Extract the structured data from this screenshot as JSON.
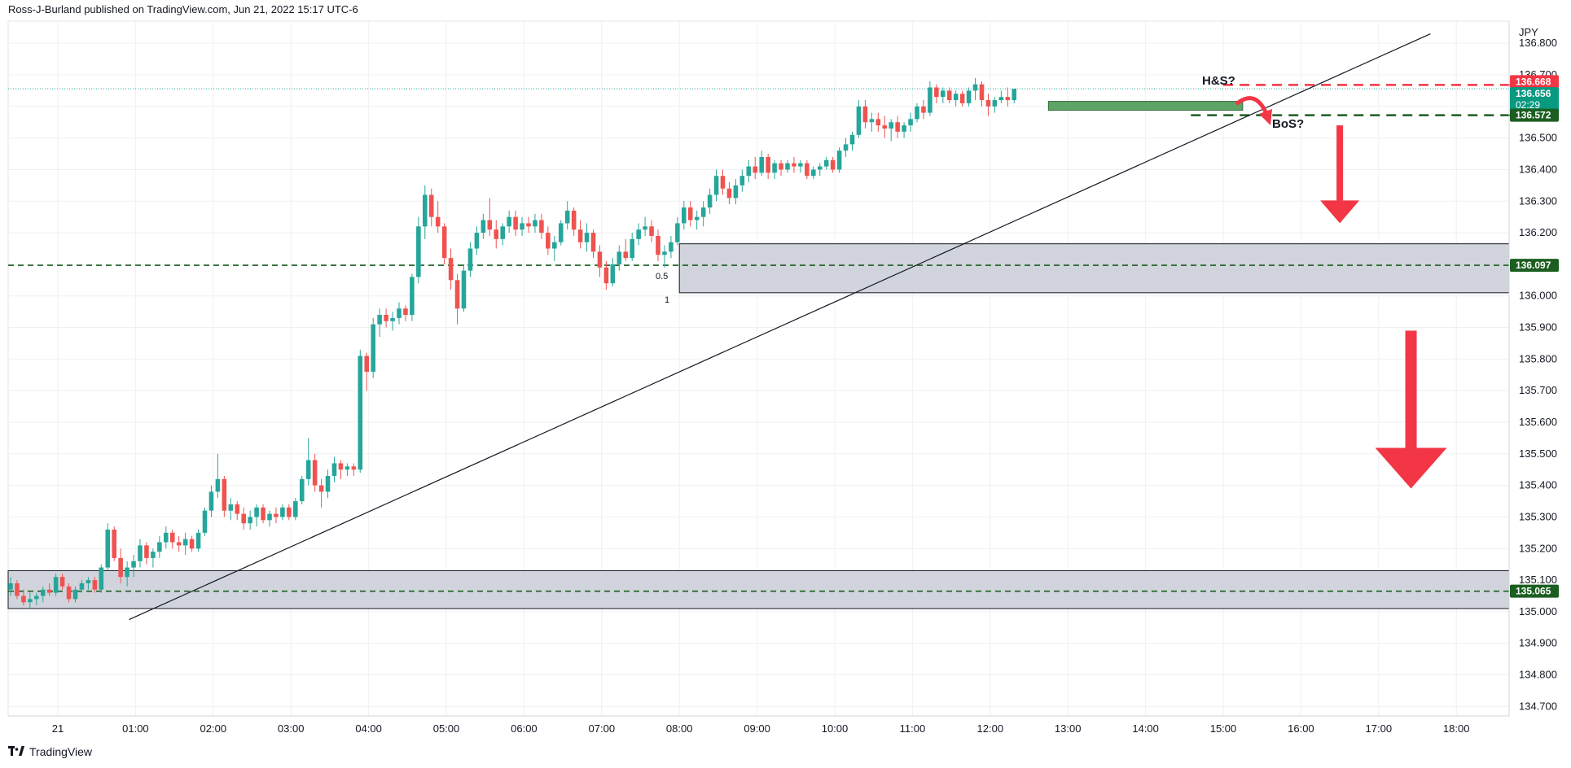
{
  "header": {
    "published": "Ross-J-Burland published on TradingView.com, Jun 21, 2022 15:17 UTC-6"
  },
  "footer": {
    "brand": "TradingView",
    "logo_icon": "tradingview-logo-icon"
  },
  "chart_data": {
    "type": "candlestick",
    "currency": "JPY",
    "x_ticks": [
      "21",
      "01:00",
      "02:00",
      "03:00",
      "04:00",
      "05:00",
      "06:00",
      "07:00",
      "08:00",
      "09:00",
      "10:00",
      "11:00",
      "12:00",
      "13:00",
      "14:00",
      "15:00",
      "16:00",
      "17:00",
      "18:00"
    ],
    "y_ticks": [
      "136.800",
      "136.700",
      "136.600",
      "136.500",
      "136.400",
      "136.300",
      "136.200",
      "136.100",
      "136.000",
      "135.900",
      "135.800",
      "135.700",
      "135.600",
      "135.500",
      "135.400",
      "135.300",
      "135.200",
      "135.100",
      "135.000",
      "134.900",
      "134.800",
      "134.700"
    ],
    "ylim": [
      134.67,
      136.87
    ],
    "bar_minutes": 5,
    "colors": {
      "up": "#26a69a",
      "down": "#ef5350",
      "arrow": "#f23645",
      "level_green": "#1b5e20",
      "zone_fill": "#d1d4dc",
      "zone_green": "#4c9a56"
    },
    "price_tags": [
      {
        "label": "136.668",
        "value": 136.668,
        "color": "#f23645"
      },
      {
        "label": "136.656",
        "value": 136.656,
        "color": "#089981",
        "countdown": "02:29"
      },
      {
        "label": "136.572",
        "value": 136.572,
        "color": "#1b5e20"
      },
      {
        "label": "136.097",
        "value": 136.097,
        "color": "#1b5e20"
      },
      {
        "label": "135.065",
        "value": 135.065,
        "color": "#1b5e20"
      }
    ],
    "annotations": [
      {
        "text": "H&S?"
      },
      {
        "text": "BoS?"
      },
      {
        "text": "0.5"
      },
      {
        "text": "1"
      }
    ],
    "zones": [
      {
        "from": "00:00",
        "to": "end",
        "low": 135.01,
        "high": 135.13
      },
      {
        "from": "08:00",
        "to": "end",
        "low": 136.01,
        "high": 136.165
      },
      {
        "from": "12:45",
        "to": "15:15",
        "low": 136.588,
        "high": 136.616,
        "style": "green"
      }
    ],
    "levels": [
      {
        "value": 136.668,
        "from": "15:00",
        "to": "18:45",
        "style": "red-dash"
      },
      {
        "value": 136.572,
        "from": "14:35",
        "to": "18:45",
        "style": "green-dash"
      },
      {
        "value": 136.097,
        "from": "00:00",
        "to": "end",
        "style": "green-dash"
      },
      {
        "value": 135.065,
        "from": "00:00",
        "to": "end",
        "style": "green-dash"
      }
    ],
    "trendline": [
      {
        "t": "00:55",
        "price": 134.975
      },
      {
        "t": "17:40",
        "price": 136.83
      }
    ],
    "arrows": [
      {
        "t": "16:30",
        "from": 136.54,
        "to": 136.23,
        "size": "small"
      },
      {
        "t": "17:25",
        "from": 135.89,
        "to": 135.39,
        "size": "large"
      }
    ],
    "candles": [
      {
        "o": 135.07,
        "h": 135.11,
        "l": 135.05,
        "c": 135.09
      },
      {
        "o": 135.09,
        "h": 135.1,
        "l": 135.04,
        "c": 135.05
      },
      {
        "o": 135.05,
        "h": 135.07,
        "l": 135.02,
        "c": 135.03
      },
      {
        "o": 135.03,
        "h": 135.06,
        "l": 135.01,
        "c": 135.04
      },
      {
        "o": 135.04,
        "h": 135.06,
        "l": 135.02,
        "c": 135.05
      },
      {
        "o": 135.05,
        "h": 135.08,
        "l": 135.03,
        "c": 135.07
      },
      {
        "o": 135.07,
        "h": 135.09,
        "l": 135.05,
        "c": 135.06
      },
      {
        "o": 135.06,
        "h": 135.12,
        "l": 135.05,
        "c": 135.11
      },
      {
        "o": 135.11,
        "h": 135.12,
        "l": 135.07,
        "c": 135.08
      },
      {
        "o": 135.08,
        "h": 135.09,
        "l": 135.03,
        "c": 135.04
      },
      {
        "o": 135.04,
        "h": 135.08,
        "l": 135.03,
        "c": 135.07
      },
      {
        "o": 135.07,
        "h": 135.1,
        "l": 135.06,
        "c": 135.09
      },
      {
        "o": 135.09,
        "h": 135.11,
        "l": 135.07,
        "c": 135.1
      },
      {
        "o": 135.1,
        "h": 135.11,
        "l": 135.06,
        "c": 135.07
      },
      {
        "o": 135.07,
        "h": 135.15,
        "l": 135.06,
        "c": 135.14
      },
      {
        "o": 135.14,
        "h": 135.28,
        "l": 135.13,
        "c": 135.26
      },
      {
        "o": 135.26,
        "h": 135.27,
        "l": 135.16,
        "c": 135.17
      },
      {
        "o": 135.17,
        "h": 135.2,
        "l": 135.09,
        "c": 135.11
      },
      {
        "o": 135.11,
        "h": 135.16,
        "l": 135.08,
        "c": 135.14
      },
      {
        "o": 135.14,
        "h": 135.18,
        "l": 135.11,
        "c": 135.16
      },
      {
        "o": 135.16,
        "h": 135.23,
        "l": 135.14,
        "c": 135.21
      },
      {
        "o": 135.21,
        "h": 135.22,
        "l": 135.15,
        "c": 135.17
      },
      {
        "o": 135.17,
        "h": 135.2,
        "l": 135.14,
        "c": 135.19
      },
      {
        "o": 135.19,
        "h": 135.24,
        "l": 135.17,
        "c": 135.22
      },
      {
        "o": 135.22,
        "h": 135.27,
        "l": 135.2,
        "c": 135.25
      },
      {
        "o": 135.25,
        "h": 135.26,
        "l": 135.2,
        "c": 135.22
      },
      {
        "o": 135.22,
        "h": 135.24,
        "l": 135.19,
        "c": 135.21
      },
      {
        "o": 135.21,
        "h": 135.25,
        "l": 135.18,
        "c": 135.23
      },
      {
        "o": 135.23,
        "h": 135.24,
        "l": 135.19,
        "c": 135.2
      },
      {
        "o": 135.2,
        "h": 135.26,
        "l": 135.19,
        "c": 135.25
      },
      {
        "o": 135.25,
        "h": 135.33,
        "l": 135.24,
        "c": 135.32
      },
      {
        "o": 135.32,
        "h": 135.4,
        "l": 135.3,
        "c": 135.38
      },
      {
        "o": 135.38,
        "h": 135.5,
        "l": 135.36,
        "c": 135.42
      },
      {
        "o": 135.42,
        "h": 135.43,
        "l": 135.3,
        "c": 135.32
      },
      {
        "o": 135.32,
        "h": 135.36,
        "l": 135.29,
        "c": 135.34
      },
      {
        "o": 135.34,
        "h": 135.35,
        "l": 135.29,
        "c": 135.31
      },
      {
        "o": 135.31,
        "h": 135.33,
        "l": 135.26,
        "c": 135.28
      },
      {
        "o": 135.28,
        "h": 135.32,
        "l": 135.26,
        "c": 135.3
      },
      {
        "o": 135.3,
        "h": 135.34,
        "l": 135.27,
        "c": 135.33
      },
      {
        "o": 135.33,
        "h": 135.34,
        "l": 135.28,
        "c": 135.29
      },
      {
        "o": 135.29,
        "h": 135.32,
        "l": 135.27,
        "c": 135.31
      },
      {
        "o": 135.31,
        "h": 135.33,
        "l": 135.28,
        "c": 135.3
      },
      {
        "o": 135.3,
        "h": 135.34,
        "l": 135.29,
        "c": 135.33
      },
      {
        "o": 135.33,
        "h": 135.34,
        "l": 135.29,
        "c": 135.3
      },
      {
        "o": 135.3,
        "h": 135.36,
        "l": 135.29,
        "c": 135.35
      },
      {
        "o": 135.35,
        "h": 135.43,
        "l": 135.34,
        "c": 135.42
      },
      {
        "o": 135.42,
        "h": 135.55,
        "l": 135.4,
        "c": 135.48
      },
      {
        "o": 135.48,
        "h": 135.5,
        "l": 135.38,
        "c": 135.4
      },
      {
        "o": 135.4,
        "h": 135.42,
        "l": 135.33,
        "c": 135.38
      },
      {
        "o": 135.38,
        "h": 135.45,
        "l": 135.36,
        "c": 135.43
      },
      {
        "o": 135.43,
        "h": 135.49,
        "l": 135.41,
        "c": 135.47
      },
      {
        "o": 135.47,
        "h": 135.48,
        "l": 135.42,
        "c": 135.45
      },
      {
        "o": 135.45,
        "h": 135.47,
        "l": 135.43,
        "c": 135.46
      },
      {
        "o": 135.46,
        "h": 135.47,
        "l": 135.43,
        "c": 135.45
      },
      {
        "o": 135.45,
        "h": 135.83,
        "l": 135.44,
        "c": 135.81
      },
      {
        "o": 135.81,
        "h": 135.82,
        "l": 135.7,
        "c": 135.76
      },
      {
        "o": 135.76,
        "h": 135.93,
        "l": 135.74,
        "c": 135.91
      },
      {
        "o": 135.91,
        "h": 135.96,
        "l": 135.87,
        "c": 135.94
      },
      {
        "o": 135.94,
        "h": 135.96,
        "l": 135.9,
        "c": 135.92
      },
      {
        "o": 135.92,
        "h": 135.95,
        "l": 135.89,
        "c": 135.93
      },
      {
        "o": 135.93,
        "h": 135.98,
        "l": 135.91,
        "c": 135.96
      },
      {
        "o": 135.96,
        "h": 135.97,
        "l": 135.92,
        "c": 135.94
      },
      {
        "o": 135.94,
        "h": 136.07,
        "l": 135.92,
        "c": 136.06
      },
      {
        "o": 136.06,
        "h": 136.25,
        "l": 136.04,
        "c": 136.22
      },
      {
        "o": 136.22,
        "h": 136.35,
        "l": 136.18,
        "c": 136.32
      },
      {
        "o": 136.32,
        "h": 136.34,
        "l": 136.22,
        "c": 136.25
      },
      {
        "o": 136.25,
        "h": 136.3,
        "l": 136.2,
        "c": 136.22
      },
      {
        "o": 136.22,
        "h": 136.23,
        "l": 136.1,
        "c": 136.12
      },
      {
        "o": 136.12,
        "h": 136.15,
        "l": 136.02,
        "c": 136.05
      },
      {
        "o": 136.05,
        "h": 136.07,
        "l": 135.91,
        "c": 135.96
      },
      {
        "o": 135.96,
        "h": 136.1,
        "l": 135.95,
        "c": 136.08
      },
      {
        "o": 136.08,
        "h": 136.17,
        "l": 136.06,
        "c": 136.15
      },
      {
        "o": 136.15,
        "h": 136.22,
        "l": 136.13,
        "c": 136.2
      },
      {
        "o": 136.2,
        "h": 136.26,
        "l": 136.18,
        "c": 136.24
      },
      {
        "o": 136.24,
        "h": 136.31,
        "l": 136.19,
        "c": 136.21
      },
      {
        "o": 136.21,
        "h": 136.24,
        "l": 136.15,
        "c": 136.18
      },
      {
        "o": 136.18,
        "h": 136.23,
        "l": 136.16,
        "c": 136.22
      },
      {
        "o": 136.22,
        "h": 136.27,
        "l": 136.2,
        "c": 136.25
      },
      {
        "o": 136.25,
        "h": 136.27,
        "l": 136.19,
        "c": 136.21
      },
      {
        "o": 136.21,
        "h": 136.25,
        "l": 136.19,
        "c": 136.23
      },
      {
        "o": 136.23,
        "h": 136.25,
        "l": 136.2,
        "c": 136.22
      },
      {
        "o": 136.22,
        "h": 136.26,
        "l": 136.2,
        "c": 136.24
      },
      {
        "o": 136.24,
        "h": 136.26,
        "l": 136.18,
        "c": 136.2
      },
      {
        "o": 136.2,
        "h": 136.22,
        "l": 136.13,
        "c": 136.15
      },
      {
        "o": 136.15,
        "h": 136.19,
        "l": 136.11,
        "c": 136.17
      },
      {
        "o": 136.17,
        "h": 136.24,
        "l": 136.16,
        "c": 136.23
      },
      {
        "o": 136.23,
        "h": 136.3,
        "l": 136.21,
        "c": 136.27
      },
      {
        "o": 136.27,
        "h": 136.28,
        "l": 136.19,
        "c": 136.21
      },
      {
        "o": 136.21,
        "h": 136.24,
        "l": 136.15,
        "c": 136.17
      },
      {
        "o": 136.17,
        "h": 136.23,
        "l": 136.14,
        "c": 136.2
      },
      {
        "o": 136.2,
        "h": 136.21,
        "l": 136.12,
        "c": 136.14
      },
      {
        "o": 136.14,
        "h": 136.16,
        "l": 136.06,
        "c": 136.09
      },
      {
        "o": 136.09,
        "h": 136.11,
        "l": 136.02,
        "c": 136.04
      },
      {
        "o": 136.04,
        "h": 136.12,
        "l": 136.03,
        "c": 136.1
      },
      {
        "o": 136.1,
        "h": 136.16,
        "l": 136.08,
        "c": 136.14
      },
      {
        "o": 136.14,
        "h": 136.18,
        "l": 136.11,
        "c": 136.12
      },
      {
        "o": 136.12,
        "h": 136.2,
        "l": 136.11,
        "c": 136.18
      },
      {
        "o": 136.18,
        "h": 136.23,
        "l": 136.16,
        "c": 136.21
      },
      {
        "o": 136.21,
        "h": 136.25,
        "l": 136.19,
        "c": 136.22
      },
      {
        "o": 136.22,
        "h": 136.24,
        "l": 136.17,
        "c": 136.19
      },
      {
        "o": 136.19,
        "h": 136.21,
        "l": 136.11,
        "c": 136.13
      },
      {
        "o": 136.13,
        "h": 136.16,
        "l": 136.09,
        "c": 136.14
      },
      {
        "o": 136.14,
        "h": 136.19,
        "l": 136.12,
        "c": 136.17
      },
      {
        "o": 136.17,
        "h": 136.25,
        "l": 136.16,
        "c": 136.23
      },
      {
        "o": 136.23,
        "h": 136.3,
        "l": 136.21,
        "c": 136.28
      },
      {
        "o": 136.28,
        "h": 136.3,
        "l": 136.22,
        "c": 136.24
      },
      {
        "o": 136.24,
        "h": 136.27,
        "l": 136.21,
        "c": 136.25
      },
      {
        "o": 136.25,
        "h": 136.3,
        "l": 136.22,
        "c": 136.28
      },
      {
        "o": 136.28,
        "h": 136.34,
        "l": 136.26,
        "c": 136.32
      },
      {
        "o": 136.32,
        "h": 136.4,
        "l": 136.3,
        "c": 136.38
      },
      {
        "o": 136.38,
        "h": 136.4,
        "l": 136.32,
        "c": 136.34
      },
      {
        "o": 136.34,
        "h": 136.36,
        "l": 136.29,
        "c": 136.31
      },
      {
        "o": 136.31,
        "h": 136.37,
        "l": 136.29,
        "c": 136.35
      },
      {
        "o": 136.35,
        "h": 136.4,
        "l": 136.33,
        "c": 136.38
      },
      {
        "o": 136.38,
        "h": 136.43,
        "l": 136.36,
        "c": 136.41
      },
      {
        "o": 136.41,
        "h": 136.44,
        "l": 136.37,
        "c": 136.39
      },
      {
        "o": 136.39,
        "h": 136.46,
        "l": 136.38,
        "c": 136.44
      },
      {
        "o": 136.44,
        "h": 136.45,
        "l": 136.37,
        "c": 136.39
      },
      {
        "o": 136.39,
        "h": 136.43,
        "l": 136.37,
        "c": 136.42
      },
      {
        "o": 136.42,
        "h": 136.43,
        "l": 136.38,
        "c": 136.4
      },
      {
        "o": 136.4,
        "h": 136.43,
        "l": 136.39,
        "c": 136.42
      },
      {
        "o": 136.42,
        "h": 136.44,
        "l": 136.39,
        "c": 136.41
      },
      {
        "o": 136.41,
        "h": 136.43,
        "l": 136.39,
        "c": 136.42
      },
      {
        "o": 136.42,
        "h": 136.43,
        "l": 136.37,
        "c": 136.38
      },
      {
        "o": 136.38,
        "h": 136.41,
        "l": 136.37,
        "c": 136.4
      },
      {
        "o": 136.4,
        "h": 136.42,
        "l": 136.38,
        "c": 136.41
      },
      {
        "o": 136.41,
        "h": 136.44,
        "l": 136.4,
        "c": 136.43
      },
      {
        "o": 136.43,
        "h": 136.44,
        "l": 136.39,
        "c": 136.4
      },
      {
        "o": 136.4,
        "h": 136.47,
        "l": 136.39,
        "c": 136.46
      },
      {
        "o": 136.46,
        "h": 136.5,
        "l": 136.44,
        "c": 136.48
      },
      {
        "o": 136.48,
        "h": 136.52,
        "l": 136.46,
        "c": 136.51
      },
      {
        "o": 136.51,
        "h": 136.62,
        "l": 136.5,
        "c": 136.6
      },
      {
        "o": 136.6,
        "h": 136.62,
        "l": 136.53,
        "c": 136.55
      },
      {
        "o": 136.55,
        "h": 136.58,
        "l": 136.52,
        "c": 136.56
      },
      {
        "o": 136.56,
        "h": 136.58,
        "l": 136.52,
        "c": 136.54
      },
      {
        "o": 136.54,
        "h": 136.57,
        "l": 136.5,
        "c": 136.53
      },
      {
        "o": 136.53,
        "h": 136.56,
        "l": 136.49,
        "c": 136.55
      },
      {
        "o": 136.55,
        "h": 136.57,
        "l": 136.5,
        "c": 136.52
      },
      {
        "o": 136.52,
        "h": 136.55,
        "l": 136.5,
        "c": 136.54
      },
      {
        "o": 136.54,
        "h": 136.58,
        "l": 136.52,
        "c": 136.56
      },
      {
        "o": 136.56,
        "h": 136.61,
        "l": 136.55,
        "c": 136.6
      },
      {
        "o": 136.6,
        "h": 136.62,
        "l": 136.56,
        "c": 136.58
      },
      {
        "o": 136.58,
        "h": 136.68,
        "l": 136.57,
        "c": 136.66
      },
      {
        "o": 136.66,
        "h": 136.67,
        "l": 136.61,
        "c": 136.63
      },
      {
        "o": 136.63,
        "h": 136.66,
        "l": 136.61,
        "c": 136.65
      },
      {
        "o": 136.65,
        "h": 136.66,
        "l": 136.61,
        "c": 136.62
      },
      {
        "o": 136.62,
        "h": 136.65,
        "l": 136.6,
        "c": 136.64
      },
      {
        "o": 136.64,
        "h": 136.65,
        "l": 136.6,
        "c": 136.61
      },
      {
        "o": 136.61,
        "h": 136.66,
        "l": 136.6,
        "c": 136.65
      },
      {
        "o": 136.65,
        "h": 136.69,
        "l": 136.62,
        "c": 136.67
      },
      {
        "o": 136.67,
        "h": 136.68,
        "l": 136.6,
        "c": 136.62
      },
      {
        "o": 136.62,
        "h": 136.64,
        "l": 136.57,
        "c": 136.6
      },
      {
        "o": 136.6,
        "h": 136.63,
        "l": 136.58,
        "c": 136.62
      },
      {
        "o": 136.62,
        "h": 136.65,
        "l": 136.61,
        "c": 136.63
      },
      {
        "o": 136.63,
        "h": 136.66,
        "l": 136.6,
        "c": 136.62
      },
      {
        "o": 136.62,
        "h": 136.65,
        "l": 136.61,
        "c": 136.656
      }
    ]
  }
}
